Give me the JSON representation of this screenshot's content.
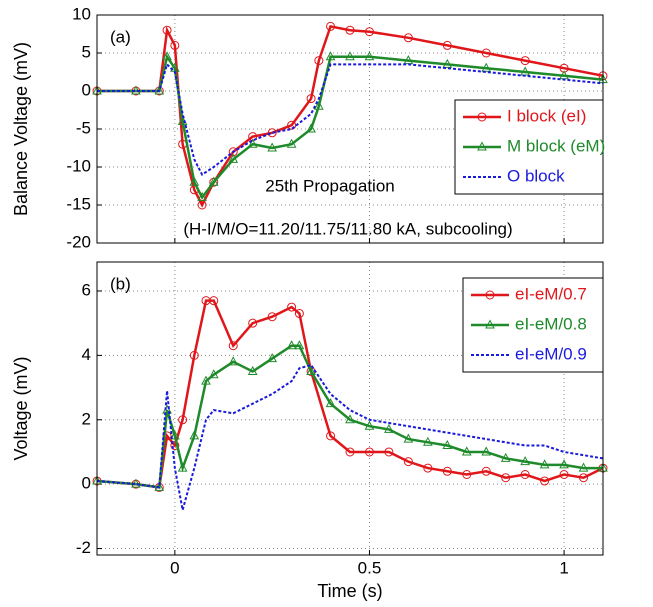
{
  "chart_data": [
    {
      "type": "line",
      "ylabel": "Balance Voltage (mV)",
      "annotations": [
        "(a)",
        "25th Propagation",
        "(H-I/M/O=11.20/11.75/11.80 kA, subcooling)"
      ],
      "x": [
        -0.2,
        -0.1,
        -0.04,
        -0.02,
        0,
        0.02,
        0.05,
        0.07,
        0.1,
        0.15,
        0.2,
        0.25,
        0.3,
        0.35,
        0.37,
        0.4,
        0.45,
        0.5,
        0.6,
        0.7,
        0.8,
        0.9,
        1.0,
        1.1
      ],
      "series": [
        {
          "name": "I block (eI)",
          "color": "#e0161b",
          "marker": "circle",
          "dashed": false,
          "values": [
            0,
            0,
            0,
            8,
            6,
            -7,
            -13,
            -15,
            -12,
            -8,
            -6,
            -5.5,
            -4.5,
            -1,
            4,
            8.5,
            8,
            7.8,
            7,
            6,
            5,
            4,
            3,
            2
          ]
        },
        {
          "name": "M block (eM)",
          "color": "#1e8a2a",
          "marker": "triangle",
          "dashed": false,
          "values": [
            0,
            0,
            0,
            4.5,
            3,
            -4,
            -12,
            -14,
            -12,
            -9,
            -7,
            -7.5,
            -7,
            -5,
            -2,
            4.5,
            4.5,
            4.5,
            4,
            3.5,
            3,
            2.5,
            2,
            1.5
          ]
        },
        {
          "name": "O block",
          "color": "#1a1adc",
          "marker": "none",
          "dashed": true,
          "values": [
            0,
            0,
            0,
            3.5,
            2.5,
            -3,
            -9,
            -11,
            -10,
            -8,
            -6.5,
            -5.5,
            -5,
            -3,
            -1,
            3.5,
            3.5,
            3.5,
            3.5,
            3,
            2.5,
            2,
            1.5,
            1
          ]
        }
      ],
      "xlim": [
        -0.2,
        1.1
      ],
      "xticks": [
        0,
        0.5,
        1
      ],
      "xtick_labels_shown": false,
      "ylim": [
        -20,
        10
      ],
      "yticks": [
        -20,
        -15,
        -10,
        -5,
        0,
        5,
        10
      ],
      "grid": true,
      "legend": "right"
    },
    {
      "type": "line",
      "ylabel": "Voltage (mV)",
      "xlabel": "Time (s)",
      "annotations": [
        "(b)"
      ],
      "x": [
        -0.2,
        -0.1,
        -0.04,
        -0.02,
        0,
        0.02,
        0.05,
        0.08,
        0.1,
        0.15,
        0.2,
        0.25,
        0.3,
        0.32,
        0.35,
        0.4,
        0.45,
        0.5,
        0.55,
        0.6,
        0.65,
        0.7,
        0.75,
        0.8,
        0.85,
        0.9,
        0.95,
        1.0,
        1.05,
        1.1
      ],
      "series": [
        {
          "name": "eI-eM/0.7",
          "color": "#e0161b",
          "marker": "circle",
          "dashed": false,
          "values": [
            0.1,
            0,
            -0.1,
            1.5,
            1.2,
            2,
            4,
            5.7,
            5.7,
            4.3,
            5,
            5.2,
            5.5,
            5.3,
            3.5,
            1.5,
            1,
            1,
            1,
            0.7,
            0.5,
            0.4,
            0.3,
            0.4,
            0.2,
            0.3,
            0.1,
            0.3,
            0.2,
            0.5
          ]
        },
        {
          "name": "eI-eM/0.8",
          "color": "#1e8a2a",
          "marker": "triangle",
          "dashed": false,
          "values": [
            0.1,
            0,
            -0.1,
            2.3,
            1.5,
            0.5,
            1.5,
            3.2,
            3.4,
            3.8,
            3.5,
            3.9,
            4.3,
            4.3,
            3.5,
            2.5,
            2,
            1.8,
            1.7,
            1.4,
            1.3,
            1.2,
            1.0,
            1.0,
            0.8,
            0.7,
            0.6,
            0.6,
            0.5,
            0.5
          ]
        },
        {
          "name": "eI-eM/0.9",
          "color": "#1a1adc",
          "marker": "none",
          "dashed": true,
          "values": [
            0.1,
            0,
            -0.1,
            2.9,
            0.5,
            -0.8,
            0.5,
            2,
            2.3,
            2.2,
            2.5,
            2.8,
            3.2,
            3.6,
            3.7,
            2.8,
            2.3,
            2,
            1.9,
            1.8,
            1.7,
            1.6,
            1.5,
            1.4,
            1.3,
            1.2,
            1.2,
            1.0,
            0.9,
            0.8
          ]
        }
      ],
      "xlim": [
        -0.2,
        1.1
      ],
      "xticks": [
        0,
        0.5,
        1
      ],
      "xtick_labels_shown": true,
      "ylim": [
        -2.2,
        6.9
      ],
      "yticks": [
        -2,
        0,
        2,
        4,
        6
      ],
      "grid": true,
      "legend": "upper right"
    }
  ]
}
